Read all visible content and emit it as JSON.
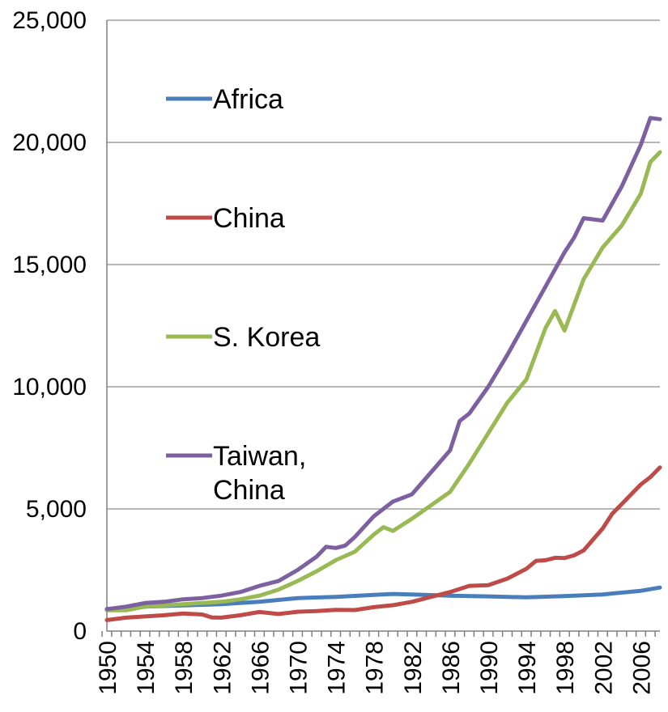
{
  "chart_data": {
    "type": "line",
    "title": "",
    "xlabel": "",
    "ylabel": "",
    "ylim": [
      0,
      25000
    ],
    "xlim": [
      1950,
      2008
    ],
    "y_ticks": [
      "0",
      "5,000",
      "10,000",
      "15,000",
      "20,000",
      "25,000"
    ],
    "y_tick_values": [
      0,
      5000,
      10000,
      15000,
      20000,
      25000
    ],
    "x_ticks": [
      "1950",
      "1954",
      "1958",
      "1962",
      "1966",
      "1970",
      "1974",
      "1978",
      "1982",
      "1986",
      "1990",
      "1994",
      "1998",
      "2002",
      "2006"
    ],
    "grid": true,
    "legend_position": "left-inside",
    "series": [
      {
        "name": "Africa",
        "color": "#4a7ebb",
        "x": [
          1950,
          1954,
          1958,
          1962,
          1966,
          1970,
          1974,
          1978,
          1980,
          1982,
          1986,
          1990,
          1994,
          1998,
          2002,
          2006,
          2008
        ],
        "values": [
          900,
          1000,
          1050,
          1100,
          1200,
          1350,
          1400,
          1480,
          1520,
          1500,
          1450,
          1420,
          1380,
          1430,
          1500,
          1650,
          1780
        ]
      },
      {
        "name": "China",
        "color": "#be4b48",
        "x": [
          1950,
          1952,
          1954,
          1956,
          1958,
          1960,
          1961,
          1962,
          1964,
          1966,
          1968,
          1970,
          1972,
          1974,
          1976,
          1978,
          1980,
          1982,
          1984,
          1986,
          1988,
          1990,
          1992,
          1994,
          1995,
          1996,
          1997,
          1998,
          1999,
          2000,
          2002,
          2003,
          2004,
          2006,
          2007,
          2008
        ],
        "values": [
          450,
          550,
          600,
          650,
          720,
          680,
          560,
          550,
          650,
          780,
          700,
          790,
          820,
          870,
          860,
          980,
          1060,
          1200,
          1400,
          1600,
          1850,
          1880,
          2150,
          2550,
          2870,
          2900,
          3000,
          2990,
          3100,
          3300,
          4200,
          4800,
          5200,
          6000,
          6300,
          6700
        ]
      },
      {
        "name": "S. Korea",
        "color": "#98b954",
        "x": [
          1950,
          1952,
          1954,
          1956,
          1958,
          1960,
          1962,
          1964,
          1966,
          1968,
          1970,
          1972,
          1974,
          1976,
          1978,
          1979,
          1980,
          1982,
          1984,
          1986,
          1988,
          1990,
          1992,
          1994,
          1996,
          1997,
          1998,
          2000,
          2002,
          2004,
          2006,
          2007,
          2008
        ],
        "values": [
          850,
          850,
          1000,
          1050,
          1100,
          1150,
          1200,
          1300,
          1450,
          1700,
          2050,
          2450,
          2900,
          3250,
          3950,
          4250,
          4100,
          4600,
          5150,
          5700,
          6850,
          8100,
          9350,
          10300,
          12400,
          13100,
          12300,
          14400,
          15700,
          16600,
          17900,
          19200,
          19600
        ]
      },
      {
        "name": "Taiwan, China",
        "color": "#7d60a0",
        "x": [
          1950,
          1952,
          1954,
          1956,
          1958,
          1960,
          1962,
          1964,
          1966,
          1968,
          1970,
          1972,
          1973,
          1974,
          1975,
          1976,
          1978,
          1980,
          1982,
          1984,
          1986,
          1987,
          1988,
          1990,
          1992,
          1994,
          1996,
          1998,
          1999,
          2000,
          2002,
          2004,
          2006,
          2007,
          2008
        ],
        "values": [
          900,
          1000,
          1150,
          1200,
          1300,
          1350,
          1450,
          1600,
          1850,
          2050,
          2500,
          3050,
          3450,
          3400,
          3500,
          3850,
          4700,
          5300,
          5600,
          6500,
          7400,
          8600,
          8900,
          10000,
          11300,
          12700,
          14100,
          15500,
          16100,
          16900,
          16800,
          18200,
          19900,
          21000,
          20950
        ]
      }
    ]
  }
}
